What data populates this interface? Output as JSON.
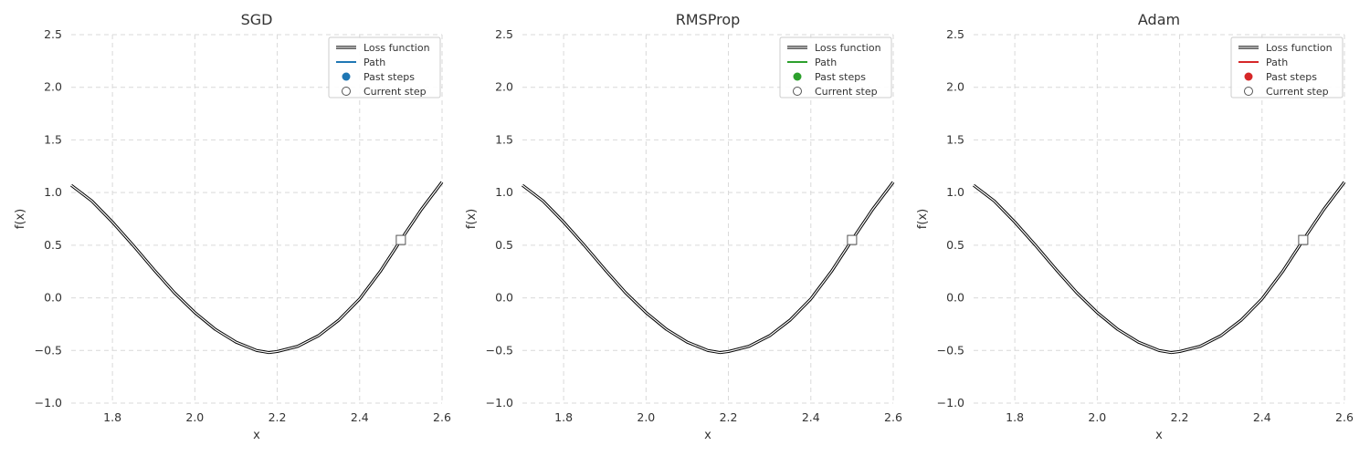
{
  "chart_data": [
    {
      "type": "line",
      "title": "SGD",
      "xlabel": "x",
      "ylabel": "f(x)",
      "xlim": [
        1.7,
        2.6
      ],
      "ylim": [
        -1.0,
        2.5
      ],
      "xticks": [
        "1.8",
        "2.0",
        "2.2",
        "2.4",
        "2.6"
      ],
      "yticks": [
        "−1.0",
        "−0.5",
        "0.0",
        "0.5",
        "1.0",
        "1.5",
        "2.0",
        "2.5"
      ],
      "grid": true,
      "legend_position": "top-right",
      "path_color": "#1f77b4",
      "series": [
        {
          "name": "Loss function",
          "x": [
            1.7,
            1.75,
            1.8,
            1.85,
            1.9,
            1.95,
            2.0,
            2.05,
            2.1,
            2.15,
            2.18,
            2.2,
            2.25,
            2.3,
            2.35,
            2.4,
            2.45,
            2.5,
            2.55,
            2.6
          ],
          "y": [
            1.07,
            0.92,
            0.72,
            0.5,
            0.27,
            0.05,
            -0.14,
            -0.3,
            -0.42,
            -0.5,
            -0.52,
            -0.51,
            -0.46,
            -0.36,
            -0.21,
            -0.01,
            0.25,
            0.55,
            0.84,
            1.1
          ]
        },
        {
          "name": "Path",
          "x": [
            2.5
          ],
          "y": [
            0.55
          ]
        },
        {
          "name": "Past steps",
          "x": [],
          "y": []
        },
        {
          "name": "Current step",
          "x": [
            2.5
          ],
          "y": [
            0.55
          ]
        }
      ]
    },
    {
      "type": "line",
      "title": "RMSProp",
      "xlabel": "x",
      "ylabel": "f(x)",
      "xlim": [
        1.7,
        2.6
      ],
      "ylim": [
        -1.0,
        2.5
      ],
      "xticks": [
        "1.8",
        "2.0",
        "2.2",
        "2.4",
        "2.6"
      ],
      "yticks": [
        "−1.0",
        "−0.5",
        "0.0",
        "0.5",
        "1.0",
        "1.5",
        "2.0",
        "2.5"
      ],
      "grid": true,
      "legend_position": "top-right",
      "path_color": "#2ca02c",
      "series": [
        {
          "name": "Loss function",
          "x": [
            1.7,
            1.75,
            1.8,
            1.85,
            1.9,
            1.95,
            2.0,
            2.05,
            2.1,
            2.15,
            2.18,
            2.2,
            2.25,
            2.3,
            2.35,
            2.4,
            2.45,
            2.5,
            2.55,
            2.6
          ],
          "y": [
            1.07,
            0.92,
            0.72,
            0.5,
            0.27,
            0.05,
            -0.14,
            -0.3,
            -0.42,
            -0.5,
            -0.52,
            -0.51,
            -0.46,
            -0.36,
            -0.21,
            -0.01,
            0.25,
            0.55,
            0.84,
            1.1
          ]
        },
        {
          "name": "Path",
          "x": [
            2.5
          ],
          "y": [
            0.55
          ]
        },
        {
          "name": "Past steps",
          "x": [],
          "y": []
        },
        {
          "name": "Current step",
          "x": [
            2.5
          ],
          "y": [
            0.55
          ]
        }
      ]
    },
    {
      "type": "line",
      "title": "Adam",
      "xlabel": "x",
      "ylabel": "f(x)",
      "xlim": [
        1.7,
        2.6
      ],
      "ylim": [
        -1.0,
        2.5
      ],
      "xticks": [
        "1.8",
        "2.0",
        "2.2",
        "2.4",
        "2.6"
      ],
      "yticks": [
        "−1.0",
        "−0.5",
        "0.0",
        "0.5",
        "1.0",
        "1.5",
        "2.0",
        "2.5"
      ],
      "grid": true,
      "legend_position": "top-right",
      "path_color": "#d62728",
      "series": [
        {
          "name": "Loss function",
          "x": [
            1.7,
            1.75,
            1.8,
            1.85,
            1.9,
            1.95,
            2.0,
            2.05,
            2.1,
            2.15,
            2.18,
            2.2,
            2.25,
            2.3,
            2.35,
            2.4,
            2.45,
            2.5,
            2.55,
            2.6
          ],
          "y": [
            1.07,
            0.92,
            0.72,
            0.5,
            0.27,
            0.05,
            -0.14,
            -0.3,
            -0.42,
            -0.5,
            -0.52,
            -0.51,
            -0.46,
            -0.36,
            -0.21,
            -0.01,
            0.25,
            0.55,
            0.84,
            1.1
          ]
        },
        {
          "name": "Path",
          "x": [
            2.5
          ],
          "y": [
            0.55
          ]
        },
        {
          "name": "Past steps",
          "x": [],
          "y": []
        },
        {
          "name": "Current step",
          "x": [
            2.5
          ],
          "y": [
            0.55
          ]
        }
      ]
    }
  ]
}
